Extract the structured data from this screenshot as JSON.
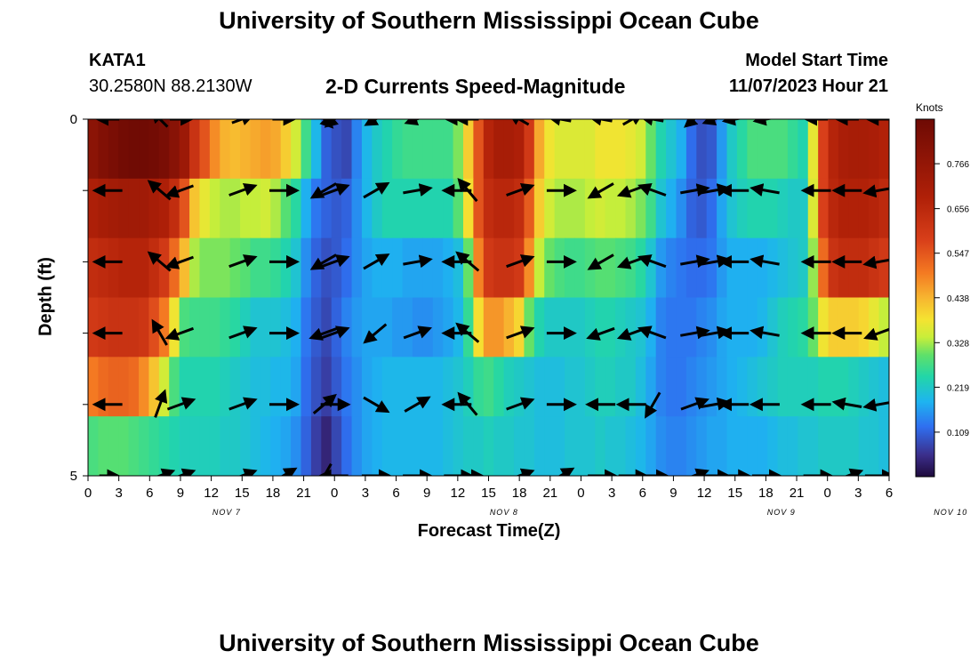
{
  "page": {
    "title": "University of Southern Mississippi Ocean Cube",
    "footer_title": "University of Southern Mississippi Ocean Cube",
    "station": "KATA1",
    "coords": "30.2580N  88.2130W",
    "subtitle": "2-D Currents Speed-Magnitude",
    "model_start_label": "Model Start Time",
    "model_start_value": "11/07/2023 Hour 21"
  },
  "chart_data": {
    "type": "heatmap",
    "title": "2-D Currents Speed-Magnitude",
    "xlabel": "Forecast Time(Z)",
    "ylabel": "Depth (ft)",
    "x_ticks": [
      "0",
      "3",
      "6",
      "9",
      "12",
      "15",
      "18",
      "21",
      "0",
      "3",
      "6",
      "9",
      "12",
      "15",
      "18",
      "21",
      "0",
      "3",
      "6",
      "9",
      "12",
      "15",
      "18",
      "21",
      "0",
      "3",
      "6"
    ],
    "day_labels": [
      {
        "label": "NOV 7",
        "tick_index": 4.5
      },
      {
        "label": "NOV 8",
        "tick_index": 13.5
      },
      {
        "label": "NOV 9",
        "tick_index": 22.5
      },
      {
        "label": "NOV 10",
        "tick_index": 28.0
      }
    ],
    "y_ticks": [
      "0",
      "5"
    ],
    "ylim": [
      0,
      5
    ],
    "hours": [
      0,
      1,
      2,
      3,
      4,
      5,
      6,
      7,
      8,
      9,
      10,
      11,
      12,
      13,
      14,
      15,
      16,
      17,
      18,
      19,
      20,
      21,
      22,
      23,
      24,
      25,
      26,
      27,
      28,
      29,
      30,
      31,
      32,
      33,
      34,
      35,
      36,
      37,
      38,
      39,
      40,
      41,
      42,
      43,
      44,
      45,
      46,
      47,
      48,
      49,
      50,
      51,
      52,
      53,
      54,
      55,
      56,
      57,
      58,
      59,
      60,
      61,
      62,
      63,
      64,
      65,
      66,
      67,
      68,
      69,
      70,
      71,
      72,
      73,
      74,
      75,
      76,
      77,
      78
    ],
    "depth_layers": [
      0,
      1,
      2,
      3,
      4,
      5
    ],
    "speed_knots": [
      [
        0.79,
        0.82,
        0.84,
        0.86,
        0.87,
        0.87,
        0.86,
        0.84,
        0.8,
        0.74,
        0.62,
        0.55,
        0.48,
        0.44,
        0.43,
        0.44,
        0.45,
        0.46,
        0.45,
        0.41,
        0.35,
        0.27,
        0.19,
        0.11,
        0.09,
        0.08,
        0.14,
        0.19,
        0.22,
        0.24,
        0.26,
        0.27,
        0.27,
        0.27,
        0.27,
        0.27,
        0.31,
        0.41,
        0.55,
        0.67,
        0.71,
        0.71,
        0.69,
        0.6,
        0.45,
        0.38,
        0.36,
        0.36,
        0.36,
        0.36,
        0.38,
        0.38,
        0.38,
        0.37,
        0.35,
        0.3,
        0.24,
        0.21,
        0.18,
        0.12,
        0.09,
        0.1,
        0.16,
        0.22,
        0.25,
        0.28,
        0.28,
        0.28,
        0.28,
        0.26,
        0.24,
        0.37,
        0.58,
        0.67,
        0.7,
        0.71,
        0.71,
        0.7,
        0.68
      ],
      [
        0.69,
        0.71,
        0.72,
        0.73,
        0.73,
        0.73,
        0.71,
        0.69,
        0.64,
        0.55,
        0.42,
        0.37,
        0.34,
        0.33,
        0.33,
        0.34,
        0.34,
        0.35,
        0.33,
        0.29,
        0.25,
        0.18,
        0.13,
        0.11,
        0.1,
        0.11,
        0.15,
        0.19,
        0.22,
        0.24,
        0.24,
        0.24,
        0.24,
        0.24,
        0.24,
        0.24,
        0.29,
        0.39,
        0.55,
        0.64,
        0.66,
        0.66,
        0.64,
        0.54,
        0.41,
        0.35,
        0.33,
        0.33,
        0.33,
        0.34,
        0.35,
        0.34,
        0.34,
        0.33,
        0.31,
        0.27,
        0.21,
        0.18,
        0.15,
        0.11,
        0.1,
        0.12,
        0.17,
        0.21,
        0.23,
        0.24,
        0.24,
        0.24,
        0.23,
        0.22,
        0.22,
        0.36,
        0.58,
        0.66,
        0.68,
        0.68,
        0.68,
        0.67,
        0.65
      ],
      [
        0.64,
        0.65,
        0.66,
        0.67,
        0.67,
        0.67,
        0.64,
        0.6,
        0.52,
        0.43,
        0.33,
        0.31,
        0.31,
        0.31,
        0.3,
        0.29,
        0.27,
        0.27,
        0.26,
        0.24,
        0.21,
        0.15,
        0.11,
        0.09,
        0.1,
        0.12,
        0.15,
        0.17,
        0.18,
        0.18,
        0.18,
        0.17,
        0.17,
        0.17,
        0.17,
        0.18,
        0.2,
        0.3,
        0.49,
        0.6,
        0.62,
        0.62,
        0.6,
        0.48,
        0.34,
        0.3,
        0.28,
        0.27,
        0.27,
        0.28,
        0.29,
        0.29,
        0.28,
        0.27,
        0.25,
        0.21,
        0.16,
        0.14,
        0.13,
        0.12,
        0.12,
        0.13,
        0.16,
        0.18,
        0.18,
        0.18,
        0.18,
        0.19,
        0.2,
        0.21,
        0.22,
        0.32,
        0.52,
        0.62,
        0.64,
        0.64,
        0.64,
        0.62,
        0.6
      ],
      [
        0.6,
        0.61,
        0.62,
        0.62,
        0.62,
        0.61,
        0.56,
        0.5,
        0.38,
        0.28,
        0.27,
        0.27,
        0.27,
        0.26,
        0.25,
        0.23,
        0.21,
        0.21,
        0.21,
        0.2,
        0.18,
        0.13,
        0.1,
        0.08,
        0.11,
        0.14,
        0.16,
        0.17,
        0.17,
        0.17,
        0.16,
        0.16,
        0.15,
        0.15,
        0.16,
        0.17,
        0.19,
        0.26,
        0.39,
        0.47,
        0.47,
        0.44,
        0.4,
        0.3,
        0.24,
        0.22,
        0.22,
        0.22,
        0.22,
        0.23,
        0.24,
        0.24,
        0.23,
        0.22,
        0.21,
        0.18,
        0.14,
        0.13,
        0.13,
        0.13,
        0.14,
        0.15,
        0.17,
        0.18,
        0.18,
        0.18,
        0.19,
        0.21,
        0.23,
        0.24,
        0.25,
        0.3,
        0.38,
        0.41,
        0.41,
        0.41,
        0.4,
        0.37,
        0.34
      ],
      [
        0.5,
        0.52,
        0.53,
        0.53,
        0.52,
        0.48,
        0.42,
        0.35,
        0.28,
        0.24,
        0.24,
        0.24,
        0.24,
        0.23,
        0.22,
        0.21,
        0.2,
        0.2,
        0.19,
        0.19,
        0.17,
        0.12,
        0.09,
        0.07,
        0.1,
        0.13,
        0.15,
        0.17,
        0.18,
        0.19,
        0.19,
        0.19,
        0.19,
        0.19,
        0.19,
        0.2,
        0.21,
        0.23,
        0.26,
        0.27,
        0.25,
        0.23,
        0.22,
        0.21,
        0.2,
        0.2,
        0.2,
        0.21,
        0.21,
        0.22,
        0.23,
        0.23,
        0.22,
        0.22,
        0.2,
        0.17,
        0.14,
        0.13,
        0.13,
        0.14,
        0.15,
        0.16,
        0.17,
        0.18,
        0.19,
        0.2,
        0.21,
        0.22,
        0.23,
        0.23,
        0.23,
        0.23,
        0.24,
        0.24,
        0.24,
        0.23,
        0.22,
        0.21,
        0.2
      ],
      [
        0.28,
        0.29,
        0.29,
        0.29,
        0.28,
        0.27,
        0.26,
        0.25,
        0.24,
        0.23,
        0.23,
        0.23,
        0.23,
        0.22,
        0.22,
        0.21,
        0.2,
        0.19,
        0.18,
        0.17,
        0.15,
        0.11,
        0.07,
        0.04,
        0.08,
        0.12,
        0.15,
        0.17,
        0.18,
        0.19,
        0.19,
        0.19,
        0.19,
        0.19,
        0.19,
        0.2,
        0.21,
        0.22,
        0.22,
        0.23,
        0.22,
        0.22,
        0.21,
        0.21,
        0.2,
        0.2,
        0.2,
        0.21,
        0.21,
        0.21,
        0.22,
        0.21,
        0.21,
        0.2,
        0.19,
        0.17,
        0.15,
        0.14,
        0.14,
        0.15,
        0.16,
        0.17,
        0.17,
        0.18,
        0.18,
        0.18,
        0.18,
        0.19,
        0.2,
        0.2,
        0.21,
        0.21,
        0.22,
        0.22,
        0.22,
        0.22,
        0.21,
        0.21,
        0.2
      ]
    ],
    "colorbar": {
      "unit": "Knots",
      "ticks": [
        "0.766",
        "0.656",
        "0.547",
        "0.438",
        "0.328",
        "0.219",
        "0.109"
      ],
      "tick_values": [
        0.766,
        0.656,
        0.547,
        0.438,
        0.328,
        0.219,
        0.109
      ],
      "range": [
        0.0,
        0.875
      ]
    },
    "vector_hours": [
      2,
      7,
      9,
      15,
      19,
      23,
      24,
      28,
      32,
      36,
      37,
      42,
      46,
      50,
      53,
      55,
      59,
      61,
      63,
      66,
      71,
      74,
      77
    ],
    "vectors": [
      [
        [
          180,
          0.3
        ],
        [
          135,
          0.3
        ],
        [
          0,
          0.3
        ],
        [
          20,
          0.3
        ],
        [
          0,
          0.3
        ],
        [
          -45,
          0.3
        ],
        [
          220,
          0.3
        ],
        [
          210,
          0.3
        ],
        [
          200,
          0.3
        ],
        [
          180,
          0.3
        ],
        [
          180,
          0.3
        ],
        [
          150,
          0.3
        ],
        [
          170,
          0.3
        ],
        [
          170,
          0.3
        ],
        [
          30,
          0.3
        ],
        [
          170,
          0.3
        ],
        [
          220,
          0.3
        ],
        [
          200,
          0.3
        ],
        [
          190,
          0.3
        ],
        [
          190,
          0.3
        ],
        [
          180,
          0.3
        ],
        [
          180,
          0.3
        ],
        [
          180,
          0.3
        ]
      ],
      [
        [
          180,
          0.5
        ],
        [
          140,
          0.5
        ],
        [
          200,
          0.5
        ],
        [
          20,
          0.5
        ],
        [
          0,
          0.5
        ],
        [
          210,
          0.5
        ],
        [
          20,
          0.5
        ],
        [
          30,
          0.5
        ],
        [
          10,
          0.5
        ],
        [
          180,
          0.5
        ],
        [
          130,
          0.5
        ],
        [
          20,
          0.5
        ],
        [
          0,
          0.5
        ],
        [
          210,
          0.5
        ],
        [
          200,
          0.5
        ],
        [
          160,
          0.5
        ],
        [
          10,
          0.5
        ],
        [
          10,
          0.5
        ],
        [
          180,
          0.5
        ],
        [
          170,
          0.5
        ],
        [
          180,
          0.5
        ],
        [
          180,
          0.5
        ],
        [
          190,
          0.5
        ]
      ],
      [
        [
          180,
          0.5
        ],
        [
          140,
          0.5
        ],
        [
          200,
          0.5
        ],
        [
          20,
          0.5
        ],
        [
          0,
          0.5
        ],
        [
          210,
          0.5
        ],
        [
          20,
          0.5
        ],
        [
          30,
          0.5
        ],
        [
          10,
          0.5
        ],
        [
          180,
          0.5
        ],
        [
          140,
          0.5
        ],
        [
          20,
          0.5
        ],
        [
          0,
          0.5
        ],
        [
          210,
          0.5
        ],
        [
          200,
          0.5
        ],
        [
          160,
          0.5
        ],
        [
          10,
          0.5
        ],
        [
          10,
          0.5
        ],
        [
          180,
          0.5
        ],
        [
          170,
          0.5
        ],
        [
          180,
          0.5
        ],
        [
          180,
          0.5
        ],
        [
          190,
          0.5
        ]
      ],
      [
        [
          180,
          0.5
        ],
        [
          120,
          0.5
        ],
        [
          200,
          0.5
        ],
        [
          20,
          0.5
        ],
        [
          0,
          0.5
        ],
        [
          200,
          0.5
        ],
        [
          20,
          0.5
        ],
        [
          220,
          0.5
        ],
        [
          20,
          0.5
        ],
        [
          180,
          0.5
        ],
        [
          140,
          0.5
        ],
        [
          20,
          0.5
        ],
        [
          0,
          0.5
        ],
        [
          200,
          0.5
        ],
        [
          200,
          0.5
        ],
        [
          160,
          0.5
        ],
        [
          10,
          0.5
        ],
        [
          10,
          0.5
        ],
        [
          180,
          0.5
        ],
        [
          170,
          0.5
        ],
        [
          180,
          0.5
        ],
        [
          180,
          0.5
        ],
        [
          200,
          0.5
        ]
      ],
      [
        [
          180,
          0.5
        ],
        [
          70,
          0.5
        ],
        [
          20,
          0.5
        ],
        [
          20,
          0.5
        ],
        [
          0,
          0.5
        ],
        [
          40,
          0.5
        ],
        [
          0,
          0.5
        ],
        [
          -30,
          0.5
        ],
        [
          30,
          0.5
        ],
        [
          180,
          0.5
        ],
        [
          130,
          0.5
        ],
        [
          20,
          0.5
        ],
        [
          0,
          0.5
        ],
        [
          180,
          0.5
        ],
        [
          180,
          0.5
        ],
        [
          240,
          0.5
        ],
        [
          20,
          0.5
        ],
        [
          10,
          0.5
        ],
        [
          180,
          0.5
        ],
        [
          180,
          0.5
        ],
        [
          180,
          0.5
        ],
        [
          170,
          0.5
        ],
        [
          190,
          0.5
        ]
      ],
      [
        [
          0,
          0.2
        ],
        [
          20,
          0.5
        ],
        [
          20,
          0.5
        ],
        [
          20,
          0.5
        ],
        [
          30,
          0.5
        ],
        [
          240,
          0.5
        ],
        [
          180,
          0.5
        ],
        [
          0,
          0.5
        ],
        [
          0,
          0.5
        ],
        [
          0,
          0.5
        ],
        [
          0,
          0.5
        ],
        [
          20,
          0.5
        ],
        [
          30,
          0.5
        ],
        [
          0,
          0.5
        ],
        [
          0,
          0.5
        ],
        [
          0,
          0.5
        ],
        [
          20,
          0.5
        ],
        [
          0,
          0.5
        ],
        [
          0,
          0.5
        ],
        [
          0,
          0.5
        ],
        [
          0,
          0.5
        ],
        [
          20,
          0.5
        ],
        [
          0,
          0.5
        ]
      ]
    ]
  }
}
